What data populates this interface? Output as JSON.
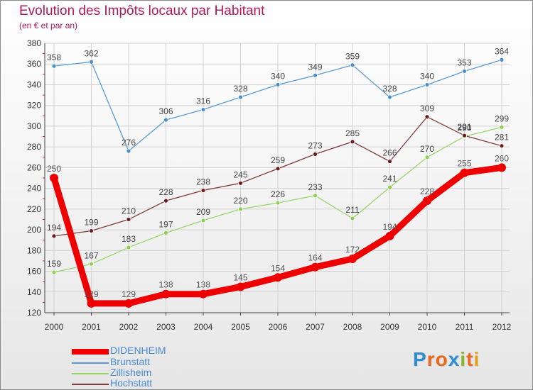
{
  "header": {
    "title": "Evolution des Impôts locaux par Habitant",
    "subtitle": "(en € et par an)"
  },
  "logo": {
    "text": "Proxiti",
    "letters": [
      "P",
      "r",
      "o",
      "x",
      "i",
      "t",
      "i"
    ]
  },
  "colors": {
    "title": "#b0185a",
    "axis": "#444444",
    "grid": "#d2d2d2",
    "tick_marks": "#cc2222",
    "logo_letters": [
      "#2f8ed1",
      "#e8681d",
      "#e8681d",
      "#2f8ed1",
      "#88b828",
      "#e8681d",
      "#e8a21d"
    ]
  },
  "chart_data": {
    "type": "line",
    "title": "Evolution des Impôts locaux par Habitant",
    "subtitle": "(en € et par an)",
    "xlabel": "",
    "ylabel": "",
    "categories": [
      "2000",
      "2001",
      "2002",
      "2003",
      "2004",
      "2005",
      "2006",
      "2007",
      "2008",
      "2009",
      "2010",
      "2011",
      "2012"
    ],
    "ylim": [
      120,
      380
    ],
    "yticks": [
      120,
      140,
      160,
      180,
      200,
      220,
      240,
      260,
      280,
      300,
      320,
      340,
      360,
      380
    ],
    "grid": true,
    "legend_position": "bottom-left",
    "series": [
      {
        "name": "Brunstatt",
        "color": "#5b9bd5",
        "label_color": "#5b9bd5",
        "marker_fill": "#4a90d0",
        "values": [
          358,
          362,
          276,
          306,
          316,
          328,
          340,
          349,
          359,
          328,
          340,
          353,
          364
        ]
      },
      {
        "name": "Zillisheim",
        "color": "#9ad56c",
        "label_color": "#7ac943",
        "marker_fill": "#8ad04c",
        "values": [
          159,
          167,
          183,
          197,
          209,
          220,
          226,
          233,
          211,
          241,
          270,
          290,
          299
        ]
      },
      {
        "name": "Hochstatt",
        "color": "#7f3b3b",
        "label_color": "#7a1c1c",
        "marker_fill": "#6e1d1d",
        "values": [
          194,
          199,
          210,
          228,
          238,
          245,
          259,
          273,
          285,
          266,
          309,
          291,
          281
        ]
      },
      {
        "name": "DIDENHEIM",
        "color": "#ee0000",
        "label_color": "#4a8bd0",
        "marker_fill": "#ee0000",
        "emphasis": true,
        "values": [
          250,
          129,
          129,
          138,
          138,
          145,
          154,
          164,
          172,
          194,
          228,
          255,
          260
        ]
      }
    ],
    "legend": [
      {
        "series": "DIDENHEIM",
        "label": "DIDENHEIM"
      },
      {
        "series": "Brunstatt",
        "label": "Brunstatt"
      },
      {
        "series": "Zillisheim",
        "label": "Zillisheim"
      },
      {
        "series": "Hochstatt",
        "label": "Hochstatt"
      }
    ]
  }
}
